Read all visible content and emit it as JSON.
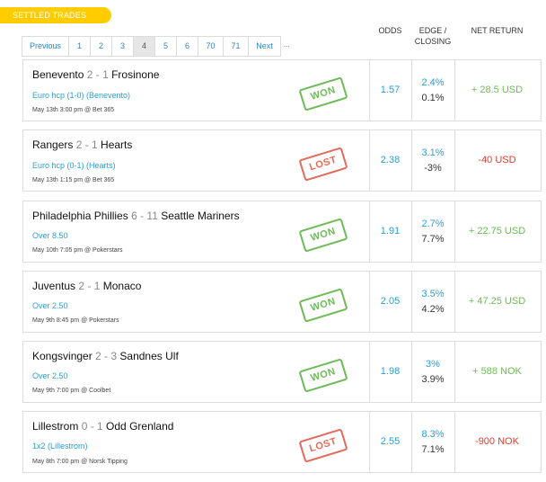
{
  "section_title": "SETTLED TRADES",
  "pagination": {
    "previous": "Previous",
    "pages": [
      "1",
      "2",
      "3",
      "4",
      "5",
      "6",
      "70",
      "71"
    ],
    "active": "4",
    "next": "Next",
    "more": "..."
  },
  "headers": {
    "odds": "ODDS",
    "edge_line1": "EDGE /",
    "edge_line2": "CLOSING",
    "net_return": "NET RETURN"
  },
  "colors": {
    "tab": "#ffcc00",
    "won": "#6dbb56",
    "lost": "#e56a5a",
    "link": "#2a9fd6",
    "negative": "#e53c2c"
  },
  "trades": [
    {
      "home": "Benevento",
      "home_score": "2",
      "away_score": "1",
      "away": "Frosinone",
      "market": "Euro hcp (1-0) (Benevento)",
      "meta": "May 13th 3:00 pm @ Bet 365",
      "result": "WON",
      "odds": "1.57",
      "edge": "2.4%",
      "closing": "0.1%",
      "net": "+ 28.5 USD",
      "net_sign": "pos"
    },
    {
      "home": "Rangers",
      "home_score": "2",
      "away_score": "1",
      "away": "Hearts",
      "market": "Euro hcp (0-1) (Hearts)",
      "meta": "May 13th 1:15 pm @ Bet 365",
      "result": "LOST",
      "odds": "2.38",
      "edge": "3.1%",
      "closing": "-3%",
      "net": "-40 USD",
      "net_sign": "neg"
    },
    {
      "home": "Philadelphia Phillies",
      "home_score": "6",
      "away_score": "11",
      "away": "Seattle Mariners",
      "market": "Over 8.50",
      "meta": "May 10th 7:05 pm @ Pokerstars",
      "result": "WON",
      "odds": "1.91",
      "edge": "2.7%",
      "closing": "7.7%",
      "net": "+ 22.75 USD",
      "net_sign": "pos"
    },
    {
      "home": "Juventus",
      "home_score": "2",
      "away_score": "1",
      "away": "Monaco",
      "market": "Over 2.50",
      "meta": "May 9th 8:45 pm @ Pokerstars",
      "result": "WON",
      "odds": "2.05",
      "edge": "3.5%",
      "closing": "4.2%",
      "net": "+ 47.25 USD",
      "net_sign": "pos"
    },
    {
      "home": "Kongsvinger",
      "home_score": "2",
      "away_score": "3",
      "away": "Sandnes Ulf",
      "market": "Over 2.50",
      "meta": "May 9th 7:00 pm @ Coolbet",
      "result": "WON",
      "odds": "1.98",
      "edge": "3%",
      "closing": "3.9%",
      "net": "+ 588 NOK",
      "net_sign": "pos"
    },
    {
      "home": "Lillestrom",
      "home_score": "0",
      "away_score": "1",
      "away": "Odd Grenland",
      "market": "1x2 (Lillestrom)",
      "meta": "May 8th 7:00 pm @ Norsk Tipping",
      "result": "LOST",
      "odds": "2.55",
      "edge": "8.3%",
      "closing": "7.1%",
      "net": "-900 NOK",
      "net_sign": "neg"
    }
  ]
}
